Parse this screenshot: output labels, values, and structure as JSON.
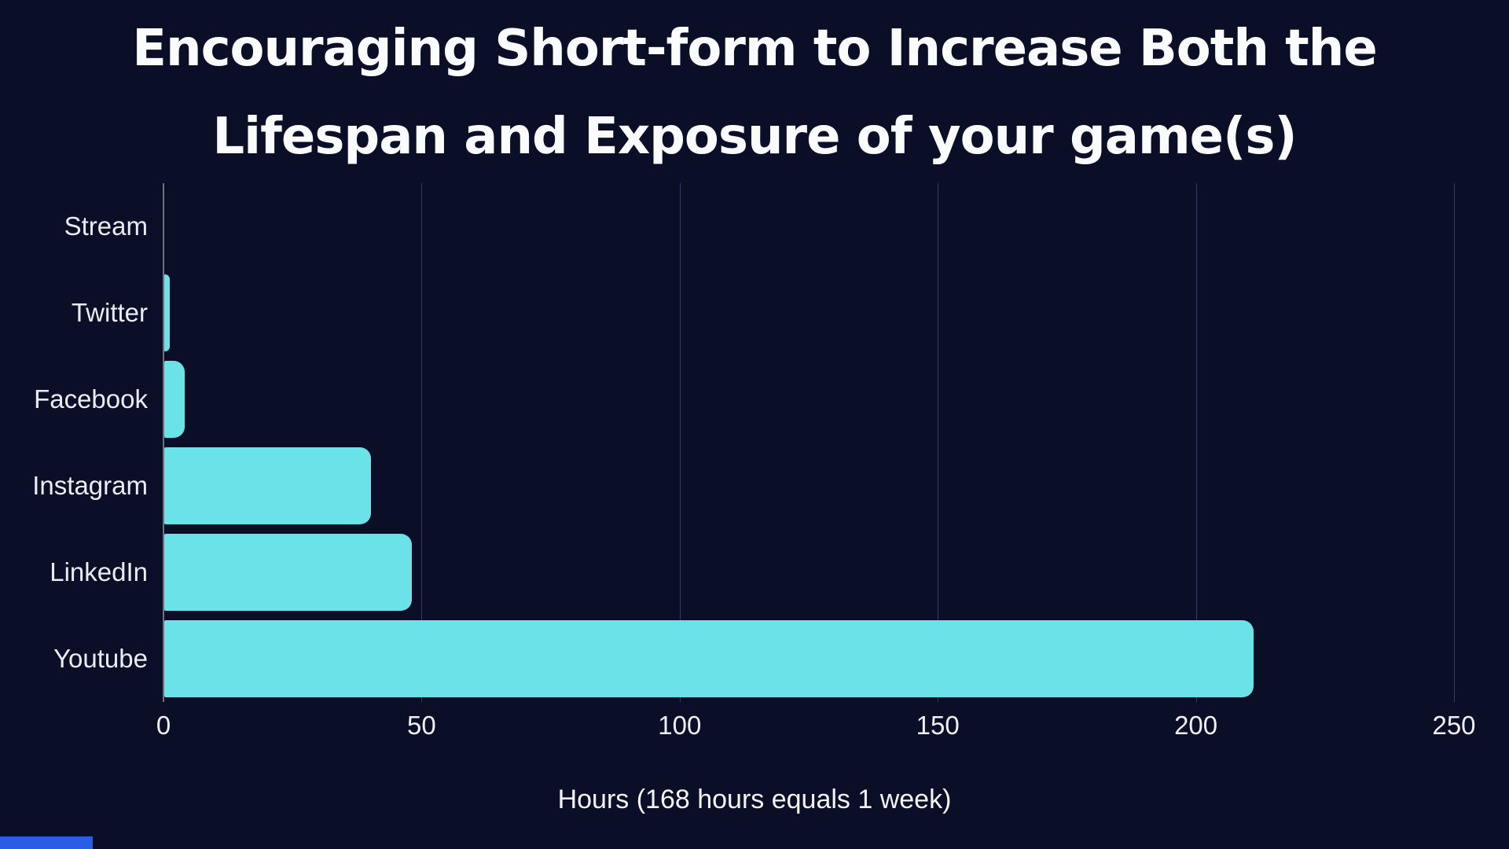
{
  "title": {
    "line1": "Encouraging Short-form to Increase Both the",
    "line2": "Lifespan and Exposure of your game(s)"
  },
  "chart_data": {
    "type": "bar",
    "orientation": "horizontal",
    "title": "Encouraging Short-form to Increase Both the Lifespan and Exposure of your game(s)",
    "categories": [
      "Stream",
      "Twitter",
      "Facebook",
      "Instagram",
      "LinkedIn",
      "Youtube"
    ],
    "values": [
      0,
      1,
      4,
      40,
      48,
      211
    ],
    "xlabel": "Hours (168 hours equals 1 week)",
    "ylabel": "",
    "xlim": [
      0,
      250
    ],
    "xticks": [
      0,
      50,
      100,
      150,
      200,
      250
    ],
    "grid": "vertical-gridlines-on",
    "legend": "none"
  },
  "colors": {
    "background": "#0a0e26",
    "bar": "#6ae2e8",
    "title_text": "#fafbfd",
    "axis_text": "#e9ecf2",
    "gridline": "#353c5e",
    "axis_line": "#6e7380",
    "corner_artifact": "#2b5ce6"
  }
}
